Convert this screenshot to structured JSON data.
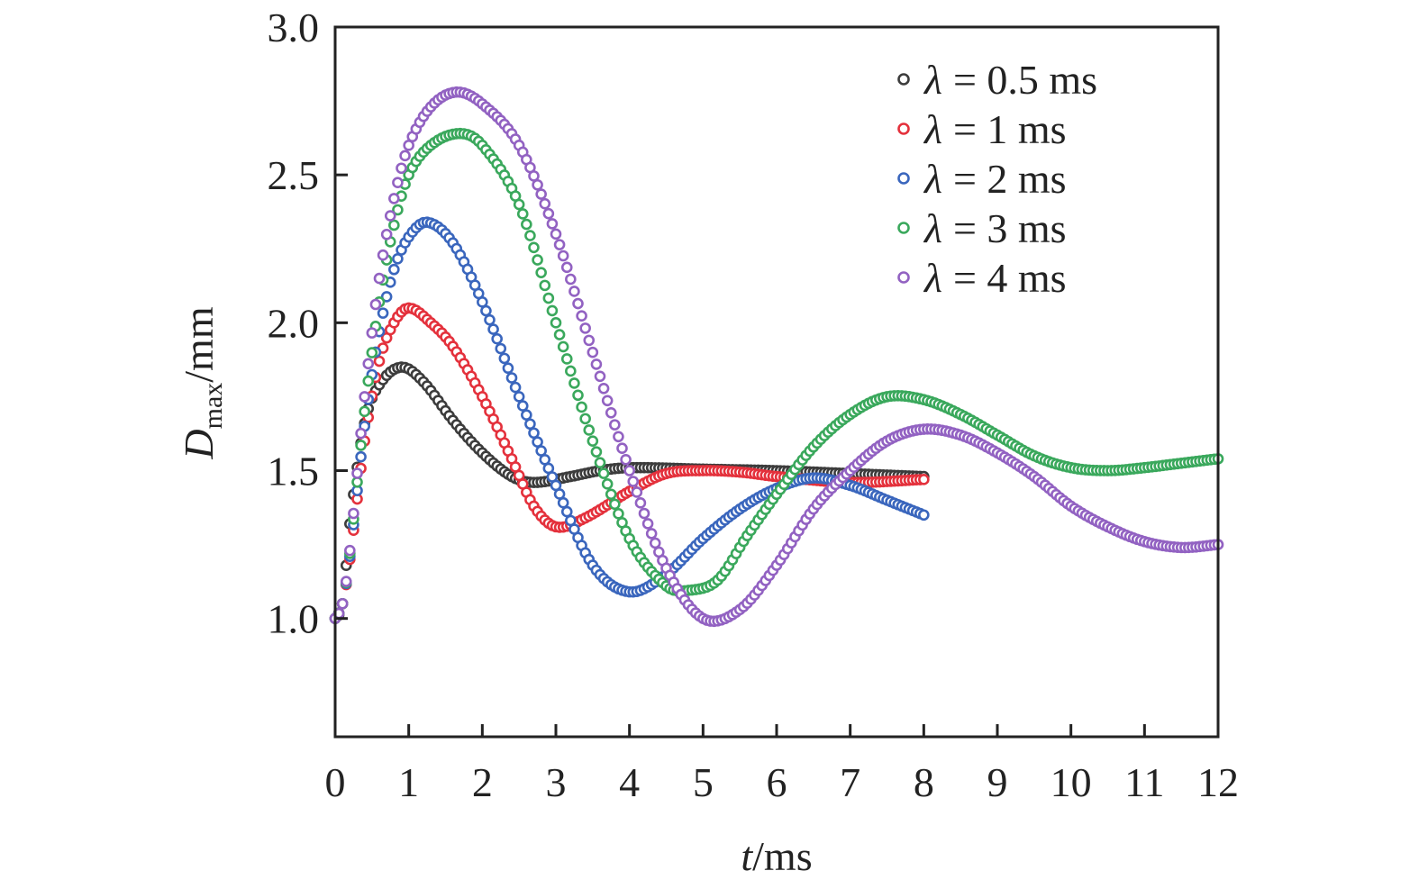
{
  "chart_data": {
    "type": "scatter",
    "title": "",
    "xlabel": {
      "var": "t",
      "unit": "/ms"
    },
    "ylabel": {
      "var": "D",
      "sub": "max",
      "unit": "/mm"
    },
    "xlim": [
      0,
      12
    ],
    "ylim": [
      0.6,
      3.0
    ],
    "xticks": [
      "0",
      "1",
      "2",
      "3",
      "4",
      "5",
      "6",
      "7",
      "8",
      "9",
      "10",
      "11",
      "12"
    ],
    "yticks": [
      "1.0",
      "1.5",
      "2.0",
      "2.5",
      "3.0"
    ],
    "grid": false,
    "legend_position": "top-right",
    "sample_step_ms": 0.05,
    "series": [
      {
        "name": "λ = 0.5 ms",
        "symbol": "λ",
        "label": "= 0.5 ms",
        "color": "#3c3c3c",
        "x": [
          0,
          0.1,
          0.2,
          0.4,
          0.6,
          0.9,
          1.2,
          1.6,
          2.0,
          2.4,
          2.7,
          3.2,
          3.6,
          4.0,
          5,
          6,
          7,
          8
        ],
        "y": [
          1.0,
          1.05,
          1.32,
          1.66,
          1.79,
          1.85,
          1.8,
          1.67,
          1.56,
          1.48,
          1.46,
          1.48,
          1.5,
          1.51,
          1.505,
          1.5,
          1.49,
          1.48
        ]
      },
      {
        "name": "λ = 1 ms",
        "symbol": "λ",
        "label": "= 1 ms",
        "color": "#e4313c",
        "x": [
          0,
          0.1,
          0.2,
          0.4,
          0.6,
          0.8,
          1.0,
          1.3,
          1.6,
          2.0,
          2.4,
          2.7,
          3.0,
          3.4,
          4,
          4.5,
          5,
          5.5,
          6,
          7,
          8
        ],
        "y": [
          1.0,
          1.05,
          1.2,
          1.6,
          1.87,
          2.0,
          2.05,
          2.0,
          1.92,
          1.75,
          1.54,
          1.38,
          1.31,
          1.34,
          1.43,
          1.49,
          1.5,
          1.495,
          1.48,
          1.46,
          1.47
        ]
      },
      {
        "name": "λ = 2 ms",
        "symbol": "λ",
        "label": "= 2 ms",
        "color": "#3a66bd",
        "x": [
          0,
          0.1,
          0.2,
          0.4,
          0.6,
          0.8,
          1.0,
          1.25,
          1.6,
          2.0,
          2.5,
          3.0,
          3.5,
          4.0,
          4.5,
          5,
          5.5,
          6,
          6.5,
          7,
          7.5,
          8
        ],
        "y": [
          1.0,
          1.05,
          1.21,
          1.65,
          1.97,
          2.18,
          2.29,
          2.34,
          2.27,
          2.07,
          1.75,
          1.45,
          1.18,
          1.09,
          1.15,
          1.27,
          1.37,
          1.44,
          1.475,
          1.45,
          1.4,
          1.35
        ]
      },
      {
        "name": "λ = 3 ms",
        "symbol": "λ",
        "label": "= 3 ms",
        "color": "#3aa85c",
        "x": [
          0,
          0.1,
          0.2,
          0.4,
          0.6,
          0.8,
          1.0,
          1.3,
          1.7,
          2.0,
          2.5,
          3.0,
          3.5,
          4.0,
          4.5,
          4.8,
          5.2,
          5.6,
          6.0,
          6.5,
          7.0,
          7.5,
          8.0,
          8.5,
          9.0,
          9.5,
          10.0,
          10.5,
          11,
          11.5,
          12
        ],
        "y": [
          1.0,
          1.05,
          1.22,
          1.7,
          2.07,
          2.33,
          2.5,
          2.6,
          2.64,
          2.6,
          2.4,
          2.0,
          1.6,
          1.27,
          1.11,
          1.095,
          1.13,
          1.28,
          1.42,
          1.58,
          1.69,
          1.75,
          1.74,
          1.69,
          1.62,
          1.55,
          1.51,
          1.5,
          1.51,
          1.525,
          1.54
        ]
      },
      {
        "name": "λ = 4 ms",
        "symbol": "λ",
        "label": "= 4 ms",
        "color": "#9262c2",
        "x": [
          0,
          0.1,
          0.2,
          0.4,
          0.6,
          0.8,
          1.0,
          1.3,
          1.65,
          2.0,
          2.5,
          3.0,
          3.5,
          4.0,
          4.5,
          5.0,
          5.5,
          6.0,
          6.5,
          7.0,
          7.5,
          8.0,
          8.5,
          9,
          9.5,
          10,
          10.5,
          11,
          11.5,
          12
        ],
        "y": [
          1.0,
          1.05,
          1.23,
          1.75,
          2.15,
          2.42,
          2.6,
          2.73,
          2.78,
          2.74,
          2.6,
          2.3,
          1.9,
          1.5,
          1.17,
          1.0,
          1.03,
          1.18,
          1.37,
          1.5,
          1.6,
          1.64,
          1.62,
          1.56,
          1.48,
          1.38,
          1.31,
          1.26,
          1.24,
          1.25
        ]
      }
    ]
  }
}
